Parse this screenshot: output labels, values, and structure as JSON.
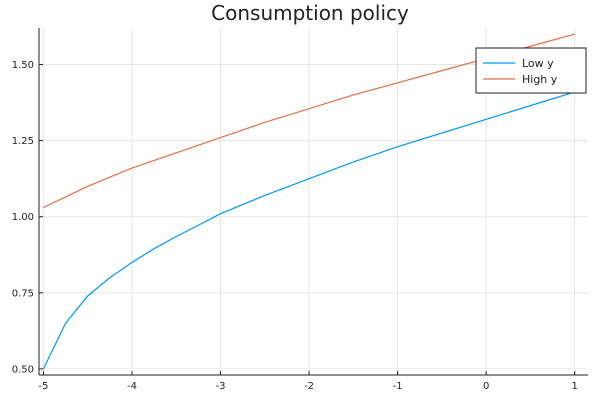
{
  "chart_data": {
    "type": "line",
    "title": "Consumption policy",
    "xlabel": "",
    "ylabel": "",
    "xlim": [
      -5.05,
      1.15
    ],
    "ylim": [
      0.48,
      1.62
    ],
    "xticks": [
      -5,
      -4,
      -3,
      -2,
      -1,
      0,
      1
    ],
    "xtick_labels": [
      "-5",
      "-4",
      "-3",
      "-2",
      "-1",
      "0",
      "1"
    ],
    "yticks": [
      0.5,
      0.75,
      1.0,
      1.25,
      1.5
    ],
    "ytick_labels": [
      "0.50",
      "0.75",
      "1.00",
      "1.25",
      "1.50"
    ],
    "grid": true,
    "legend_position": "top-right",
    "series": [
      {
        "name": "Low y",
        "color": "#009AFA",
        "x": [
          -5,
          -4.75,
          -4.5,
          -4.25,
          -4,
          -3.75,
          -3.5,
          -3.25,
          -3,
          -2.5,
          -2,
          -1.5,
          -1,
          -0.5,
          0,
          0.5,
          1
        ],
        "y": [
          0.5,
          0.65,
          0.74,
          0.8,
          0.85,
          0.895,
          0.935,
          0.972,
          1.01,
          1.07,
          1.125,
          1.18,
          1.23,
          1.275,
          1.32,
          1.365,
          1.41
        ]
      },
      {
        "name": "High y",
        "color": "#E36F47",
        "x": [
          -5,
          -4.75,
          -4.5,
          -4.25,
          -4,
          -3.5,
          -3,
          -2.5,
          -2,
          -1.5,
          -1,
          -0.5,
          0,
          0.5,
          1
        ],
        "y": [
          1.03,
          1.065,
          1.1,
          1.13,
          1.16,
          1.21,
          1.26,
          1.31,
          1.355,
          1.4,
          1.44,
          1.48,
          1.52,
          1.56,
          1.6
        ]
      }
    ]
  }
}
